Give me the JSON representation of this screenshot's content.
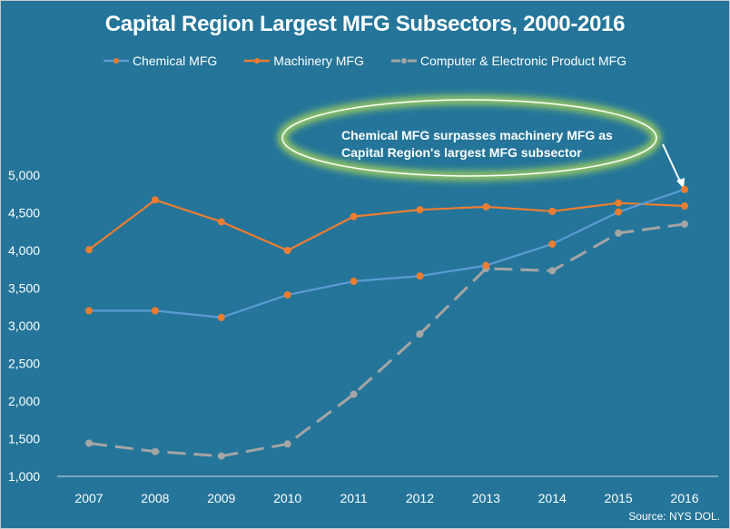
{
  "chart_data": {
    "type": "line",
    "title": "Capital Region Largest MFG Subsectors, 2000-2016",
    "xlabel": "",
    "ylabel": "",
    "categories": [
      "2007",
      "2008",
      "2009",
      "2010",
      "2011",
      "2012",
      "2013",
      "2014",
      "2015",
      "2016"
    ],
    "ylim": [
      1000,
      5000
    ],
    "yticks": [
      "1,000",
      "1,500",
      "2,000",
      "2,500",
      "3,000",
      "3,500",
      "4,000",
      "4,500",
      "5,000"
    ],
    "ytick_values": [
      1000,
      1500,
      2000,
      2500,
      3000,
      3500,
      4000,
      4500,
      5000
    ],
    "grid": false,
    "legend_position": "top",
    "series": [
      {
        "name": "Chemical MFG",
        "color": "#5b9bd5",
        "marker_color": "#ed7d31",
        "dashed": false,
        "values": [
          3200,
          3200,
          3110,
          3410,
          3590,
          3660,
          3800,
          4085,
          4510,
          4810
        ]
      },
      {
        "name": "Machinery MFG",
        "color": "#ed7d31",
        "marker_color": "#ed7d31",
        "dashed": false,
        "values": [
          4010,
          4670,
          4380,
          4000,
          4450,
          4540,
          4580,
          4520,
          4630,
          4590
        ]
      },
      {
        "name": "Computer & Electronic Product MFG",
        "color": "#a5a5a5",
        "marker_color": "#a5a5a5",
        "dashed": true,
        "values": [
          1440,
          1330,
          1270,
          1430,
          2090,
          2890,
          3760,
          3730,
          4230,
          4350
        ]
      }
    ],
    "annotation": "Chemical MFG surpasses machinery MFG as Capital Region's largest MFG subsector",
    "source": "Source: NYS DOL."
  }
}
